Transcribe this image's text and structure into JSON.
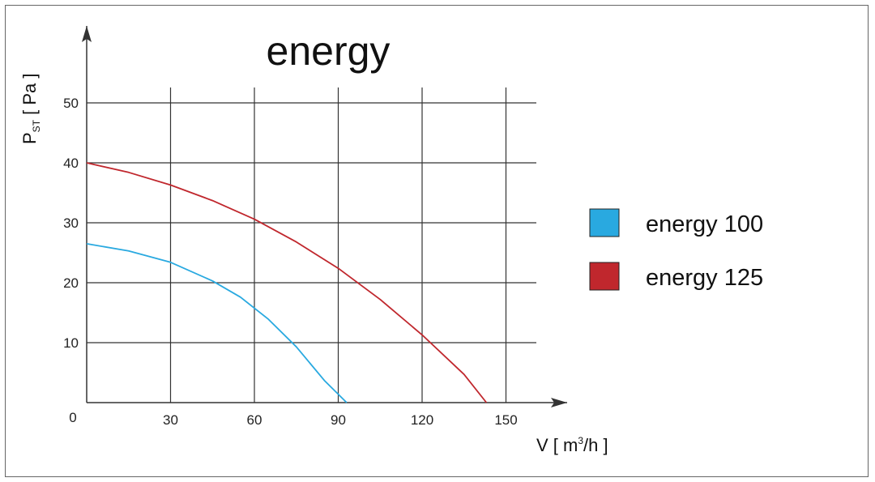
{
  "chart_data": {
    "type": "line",
    "title": "energy",
    "xlabel": {
      "main": "V [ m",
      "sup": "3",
      "tail": "/h ]"
    },
    "ylabel": {
      "main": "P",
      "sub": "ST",
      "tail": " [ Pa ]"
    },
    "origin_label": "0",
    "xlim": [
      0,
      150
    ],
    "ylim": [
      0,
      50
    ],
    "xticks": [
      30,
      60,
      90,
      120,
      150
    ],
    "yticks": [
      10,
      20,
      30,
      40,
      50
    ],
    "grid": true,
    "legend_position": "right",
    "series": [
      {
        "name": "energy 100",
        "color": "#29a9e0",
        "x": [
          0,
          15,
          30,
          45,
          55,
          65,
          75,
          85,
          93
        ],
        "y": [
          26.5,
          25.3,
          23.4,
          20.3,
          17.6,
          13.9,
          9.3,
          3.7,
          0
        ]
      },
      {
        "name": "energy 125",
        "color": "#c0272d",
        "x": [
          0,
          15,
          30,
          45,
          60,
          75,
          90,
          105,
          120,
          135,
          143
        ],
        "y": [
          40,
          38.4,
          36.3,
          33.7,
          30.6,
          26.8,
          22.4,
          17.2,
          11.3,
          4.7,
          0
        ]
      }
    ]
  }
}
